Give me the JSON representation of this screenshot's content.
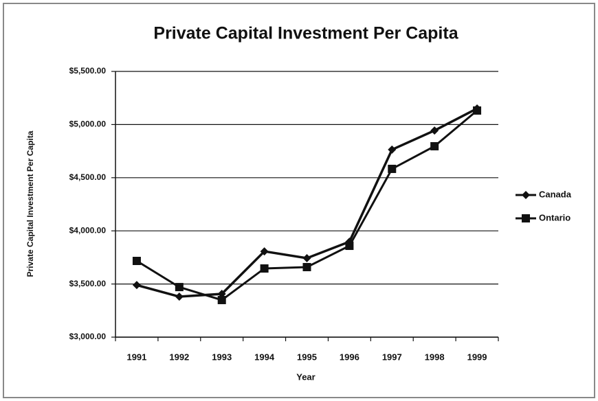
{
  "chart_data": {
    "type": "line",
    "title": "Private Capital Investment Per Capita",
    "x_label": "Year",
    "y_label": "Private Capital Investment Per Capita",
    "categories": [
      "1991",
      "1992",
      "1993",
      "1994",
      "1995",
      "1996",
      "1997",
      "1998",
      "1999"
    ],
    "series": [
      {
        "name": "Canada",
        "color": "#111111",
        "marker": "diamond",
        "values": [
          3490,
          3381,
          3407,
          3807,
          3743,
          3898,
          4764,
          4944,
          5151
        ]
      },
      {
        "name": "Ontario",
        "color": "#111111",
        "marker": "square",
        "values": [
          3717,
          3471,
          3349,
          3646,
          3659,
          3859,
          4583,
          4796,
          5132
        ]
      }
    ],
    "ylim": [
      3000,
      5500
    ],
    "yticks": [
      {
        "value": 3000,
        "label": "$3,000.00"
      },
      {
        "value": 3500,
        "label": "$3,500.00"
      },
      {
        "value": 4000,
        "label": "$4,000.00"
      },
      {
        "value": 4500,
        "label": "$4,500.00"
      },
      {
        "value": 5000,
        "label": "$5,000.00"
      },
      {
        "value": 5500,
        "label": "$5,500.00"
      }
    ],
    "grid": true,
    "legend": "right"
  }
}
